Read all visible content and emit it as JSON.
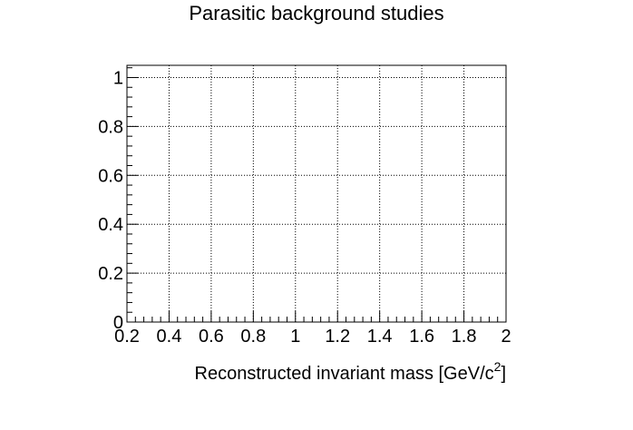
{
  "chart_data": {
    "type": "line",
    "title": "Parasitic background studies",
    "xlabel": "Reconstructed invariant mass [GeV/c",
    "xlabel_superscript": "2",
    "xlabel_suffix": "]",
    "ylabel": "",
    "xlim": [
      0.2,
      2.0
    ],
    "ylim": [
      0,
      1.05
    ],
    "x_ticks": [
      0.2,
      0.4,
      0.6,
      0.8,
      1.0,
      1.2,
      1.4,
      1.6,
      1.8,
      2.0
    ],
    "x_tick_labels": [
      "0.2",
      "0.4",
      "0.6",
      "0.8",
      "1",
      "1.2",
      "1.4",
      "1.6",
      "1.8",
      "2"
    ],
    "y_ticks": [
      0,
      0.2,
      0.4,
      0.6,
      0.8,
      1.0
    ],
    "y_tick_labels": [
      "0",
      "0.2",
      "0.4",
      "0.6",
      "0.8",
      "1"
    ],
    "grid": true,
    "grid_style": "dotted",
    "series": []
  }
}
